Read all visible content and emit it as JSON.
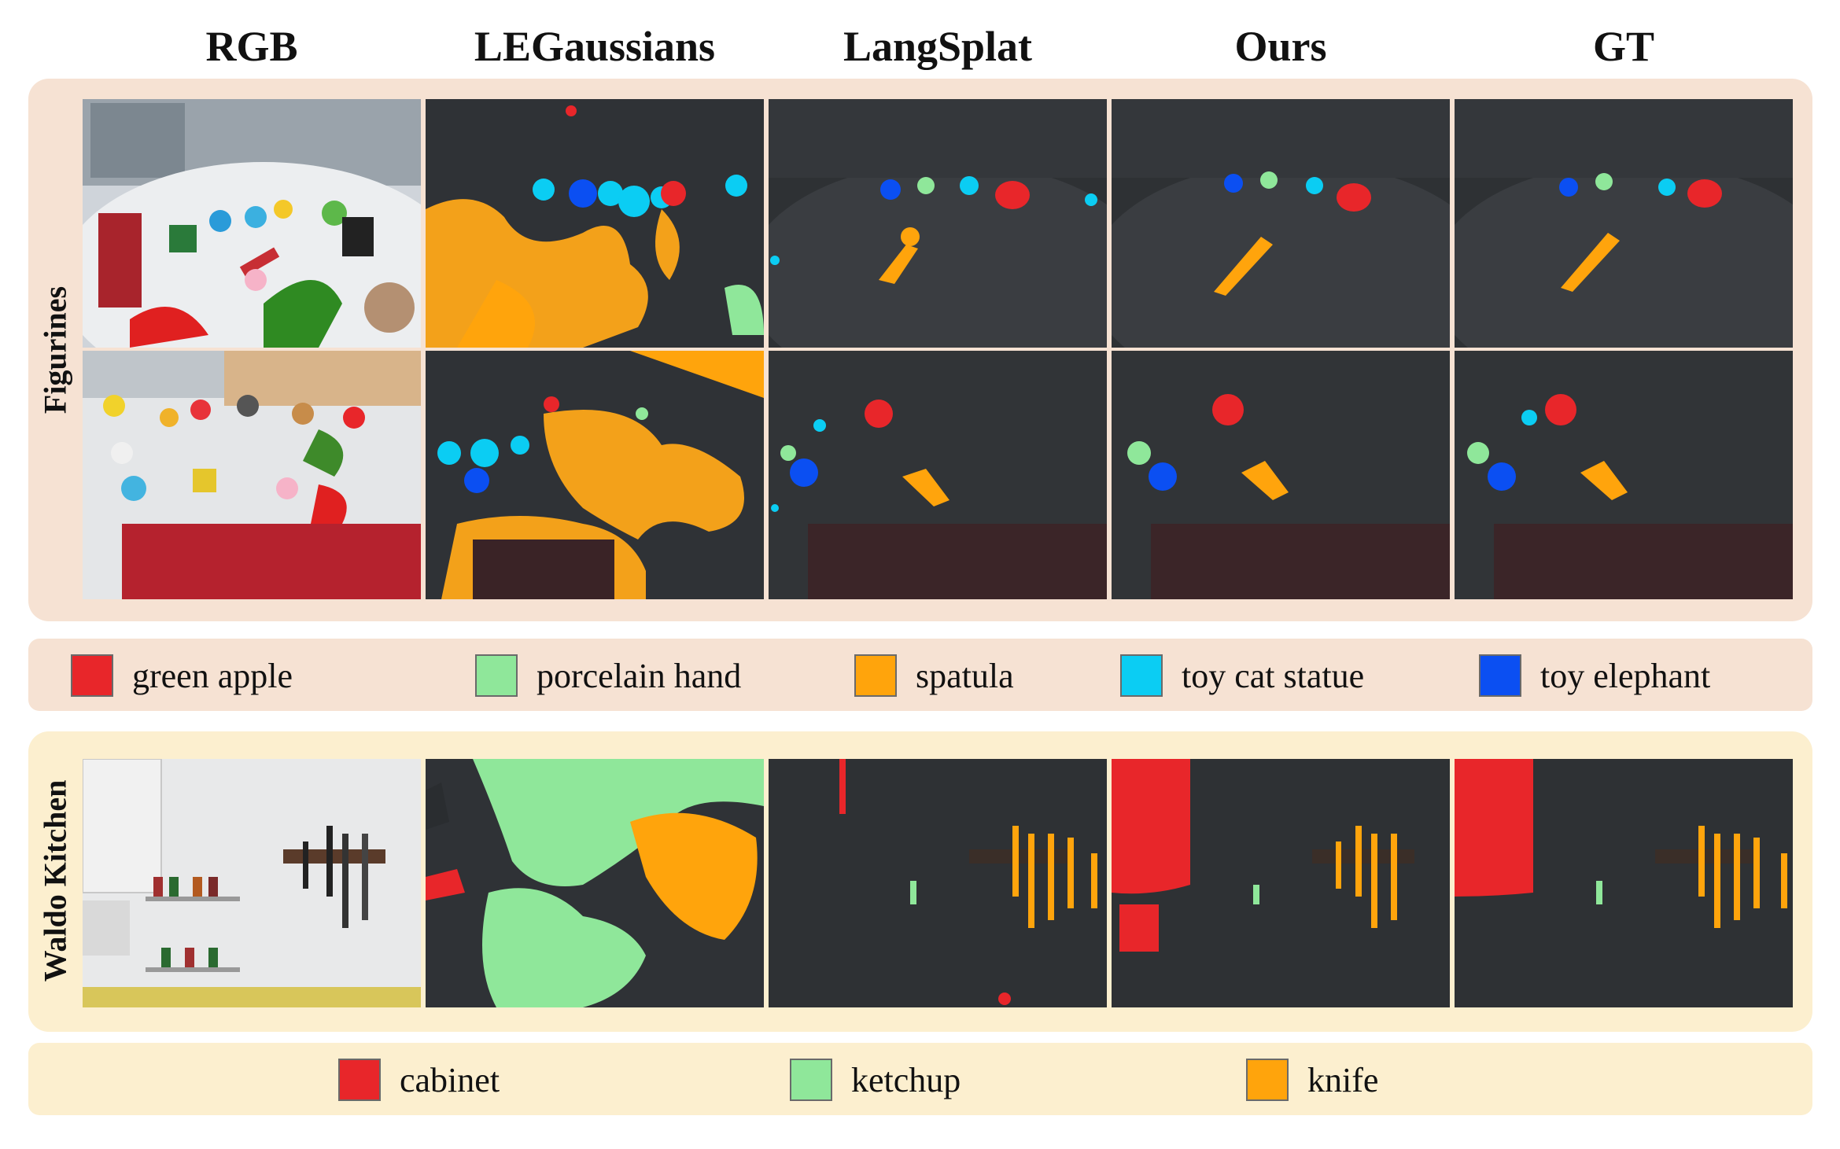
{
  "columns": [
    "RGB",
    "LEGaussians",
    "LangSplat",
    "Ours",
    "GT"
  ],
  "rows": {
    "figurines": "Figurines",
    "waldo_kitchen": "Waldo Kitchen"
  },
  "legend_figurines": [
    {
      "label": "green apple",
      "color": "#e8262a"
    },
    {
      "label": "porcelain hand",
      "color": "#8fe79a"
    },
    {
      "label": "spatula",
      "color": "#ffa40c"
    },
    {
      "label": "toy cat statue",
      "color": "#0bcdf3"
    },
    {
      "label": "toy elephant",
      "color": "#0b4ff2"
    }
  ],
  "legend_kitchen": [
    {
      "label": "cabinet",
      "color": "#e8262a"
    },
    {
      "label": "ketchup",
      "color": "#8fe79a"
    },
    {
      "label": "knife",
      "color": "#ffa40c"
    }
  ],
  "image_icons": [
    "rgb-photo",
    "segmentation-mask"
  ]
}
